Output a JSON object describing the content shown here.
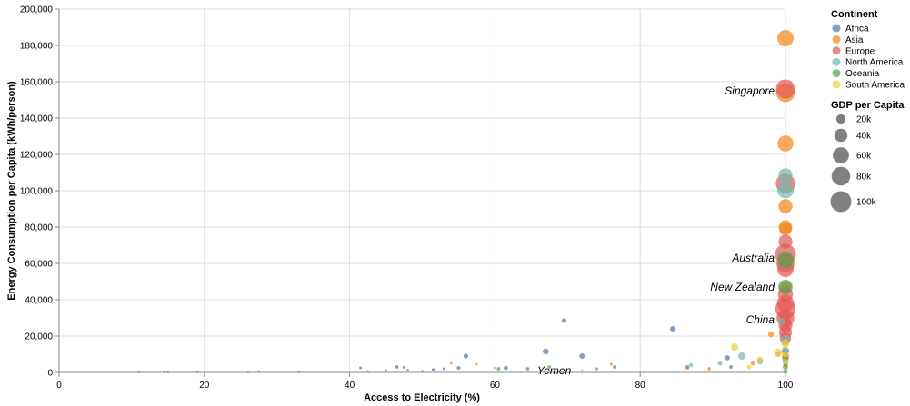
{
  "chart_data": {
    "type": "scatter",
    "xlabel": "Access to Electricity (%)",
    "ylabel": "Energy Consumption per Capita (kWh/person)",
    "xlim": [
      0,
      100
    ],
    "ylim": [
      0,
      200000
    ],
    "x_ticks": [
      0,
      20,
      40,
      60,
      80,
      100
    ],
    "x_tick_labels": [
      "0",
      "20",
      "40",
      "60",
      "80",
      "100"
    ],
    "y_ticks": [
      0,
      20000,
      40000,
      60000,
      80000,
      100000,
      120000,
      140000,
      160000,
      180000,
      200000
    ],
    "y_tick_labels": [
      "0",
      "20,000",
      "40,000",
      "60,000",
      "80,000",
      "100,000",
      "120,000",
      "140,000",
      "160,000",
      "180,000",
      "200,000"
    ],
    "grid": true,
    "legend_position": "right",
    "color_legend": {
      "title": "Continent",
      "items": [
        {
          "label": "Africa",
          "color": "#4c78a8"
        },
        {
          "label": "Asia",
          "color": "#f58518"
        },
        {
          "label": "Europe",
          "color": "#e45756"
        },
        {
          "label": "North America",
          "color": "#72b7b2"
        },
        {
          "label": "Oceania",
          "color": "#54a24b"
        },
        {
          "label": "South America",
          "color": "#eeca3b"
        }
      ]
    },
    "size_legend": {
      "title": "GDP per Capita",
      "items": [
        {
          "label": "20k",
          "value": 20000
        },
        {
          "label": "40k",
          "value": 40000
        },
        {
          "label": "60k",
          "value": 60000
        },
        {
          "label": "80k",
          "value": 80000
        },
        {
          "label": "100k",
          "value": 100000
        }
      ]
    },
    "annotations": [
      {
        "label": "Singapore",
        "x": 100,
        "y": 155000
      },
      {
        "label": "Australia",
        "x": 100,
        "y": 63000
      },
      {
        "label": "New Zealand",
        "x": 100,
        "y": 47000
      },
      {
        "label": "China",
        "x": 100,
        "y": 29000
      },
      {
        "label": "Yemen",
        "x": 72,
        "y": 1000
      }
    ],
    "series": [
      {
        "name": "Africa",
        "points": [
          {
            "x": 11,
            "y": 200,
            "gdp": 1000
          },
          {
            "x": 14.5,
            "y": 300,
            "gdp": 800
          },
          {
            "x": 15,
            "y": 250,
            "gdp": 900
          },
          {
            "x": 19,
            "y": 400,
            "gdp": 1200
          },
          {
            "x": 26,
            "y": 300,
            "gdp": 1100
          },
          {
            "x": 27.5,
            "y": 500,
            "gdp": 1300
          },
          {
            "x": 33,
            "y": 400,
            "gdp": 900
          },
          {
            "x": 41.5,
            "y": 2500,
            "gdp": 1800
          },
          {
            "x": 42.5,
            "y": 600,
            "gdp": 1200
          },
          {
            "x": 45,
            "y": 1000,
            "gdp": 1400
          },
          {
            "x": 46.5,
            "y": 3000,
            "gdp": 2500
          },
          {
            "x": 47.5,
            "y": 2800,
            "gdp": 2000
          },
          {
            "x": 48,
            "y": 1200,
            "gdp": 1500
          },
          {
            "x": 50,
            "y": 800,
            "gdp": 1100
          },
          {
            "x": 51.5,
            "y": 1500,
            "gdp": 2000
          },
          {
            "x": 53,
            "y": 2000,
            "gdp": 1600
          },
          {
            "x": 55,
            "y": 2500,
            "gdp": 3000
          },
          {
            "x": 56,
            "y": 9000,
            "gdp": 5000
          },
          {
            "x": 61.5,
            "y": 2500,
            "gdp": 4000
          },
          {
            "x": 64.5,
            "y": 2000,
            "gdp": 2500
          },
          {
            "x": 67,
            "y": 11500,
            "gdp": 8000
          },
          {
            "x": 69.5,
            "y": 28500,
            "gdp": 5000
          },
          {
            "x": 72,
            "y": 9000,
            "gdp": 7000
          },
          {
            "x": 76.5,
            "y": 3000,
            "gdp": 3000
          },
          {
            "x": 84.5,
            "y": 24000,
            "gdp": 7000
          },
          {
            "x": 86.5,
            "y": 3000,
            "gdp": 3000
          },
          {
            "x": 92,
            "y": 8000,
            "gdp": 6000
          },
          {
            "x": 92.5,
            "y": 3000,
            "gdp": 3000
          },
          {
            "x": 100,
            "y": 7000,
            "gdp": 6000
          },
          {
            "x": 100,
            "y": 11500,
            "gdp": 9000
          },
          {
            "x": 100,
            "y": 4500,
            "gdp": 4000
          }
        ]
      },
      {
        "name": "Asia",
        "points": [
          {
            "x": 54,
            "y": 5000,
            "gdp": 1500
          },
          {
            "x": 57.5,
            "y": 4500,
            "gdp": 1200
          },
          {
            "x": 60,
            "y": 2500,
            "gdp": 1500
          },
          {
            "x": 72,
            "y": 1000,
            "gdp": 1000
          },
          {
            "x": 76,
            "y": 4500,
            "gdp": 2000
          },
          {
            "x": 86.5,
            "y": 2500,
            "gdp": 3000
          },
          {
            "x": 89.5,
            "y": 2000,
            "gdp": 2500
          },
          {
            "x": 95.5,
            "y": 5000,
            "gdp": 4000
          },
          {
            "x": 98,
            "y": 21000,
            "gdp": 8000
          },
          {
            "x": 99,
            "y": 10000,
            "gdp": 6000
          },
          {
            "x": 100,
            "y": 184000,
            "gdp": 62000
          },
          {
            "x": 100,
            "y": 154000,
            "gdp": 82000
          },
          {
            "x": 100,
            "y": 126000,
            "gdp": 58000
          },
          {
            "x": 100,
            "y": 91500,
            "gdp": 45000
          },
          {
            "x": 100,
            "y": 80000,
            "gdp": 42000
          },
          {
            "x": 100,
            "y": 79000,
            "gdp": 38000
          },
          {
            "x": 100,
            "y": 47000,
            "gdp": 33000
          },
          {
            "x": 100,
            "y": 30000,
            "gdp": 32000
          },
          {
            "x": 100,
            "y": 25000,
            "gdp": 20000
          },
          {
            "x": 100,
            "y": 17000,
            "gdp": 15000
          },
          {
            "x": 100,
            "y": 9000,
            "gdp": 12000
          },
          {
            "x": 100,
            "y": 5000,
            "gdp": 6000
          }
        ]
      },
      {
        "name": "Europe",
        "points": [
          {
            "x": 100,
            "y": 156000,
            "gdp": 84000
          },
          {
            "x": 100,
            "y": 104000,
            "gdp": 86000
          },
          {
            "x": 100,
            "y": 72000,
            "gdp": 44000
          },
          {
            "x": 100,
            "y": 65000,
            "gdp": 100000
          },
          {
            "x": 100,
            "y": 60000,
            "gdp": 75000
          },
          {
            "x": 100,
            "y": 57000,
            "gdp": 62000
          },
          {
            "x": 100,
            "y": 43000,
            "gdp": 52000
          },
          {
            "x": 100,
            "y": 38000,
            "gdp": 68000
          },
          {
            "x": 100,
            "y": 35000,
            "gdp": 95000
          },
          {
            "x": 100,
            "y": 30000,
            "gdp": 72000
          },
          {
            "x": 100,
            "y": 26000,
            "gdp": 45000
          },
          {
            "x": 100,
            "y": 22000,
            "gdp": 38000
          },
          {
            "x": 100,
            "y": 19000,
            "gdp": 30000
          }
        ]
      },
      {
        "name": "North America",
        "points": [
          {
            "x": 87,
            "y": 4000,
            "gdp": 4000
          },
          {
            "x": 91,
            "y": 5000,
            "gdp": 5000
          },
          {
            "x": 94,
            "y": 9000,
            "gdp": 12000
          },
          {
            "x": 96.5,
            "y": 6000,
            "gdp": 8000
          },
          {
            "x": 99.5,
            "y": 28000,
            "gdp": 12000
          },
          {
            "x": 100,
            "y": 108500,
            "gdp": 45000
          },
          {
            "x": 100,
            "y": 100500,
            "gdp": 65000
          },
          {
            "x": 100,
            "y": 18000,
            "gdp": 20000
          },
          {
            "x": 100,
            "y": 12000,
            "gdp": 14000
          },
          {
            "x": 100,
            "y": 6500,
            "gdp": 9000
          }
        ]
      },
      {
        "name": "Oceania",
        "points": [
          {
            "x": 60.5,
            "y": 2000,
            "gdp": 3000
          },
          {
            "x": 67.5,
            "y": 3000,
            "gdp": 2500
          },
          {
            "x": 74,
            "y": 2000,
            "gdp": 2000
          },
          {
            "x": 100,
            "y": 62000,
            "gdp": 65000
          },
          {
            "x": 100,
            "y": 47000,
            "gdp": 48000
          },
          {
            "x": 100,
            "y": 8000,
            "gdp": 10000
          },
          {
            "x": 100,
            "y": 3000,
            "gdp": 7000
          },
          {
            "x": 100,
            "y": 500,
            "gdp": 4000
          }
        ]
      },
      {
        "name": "South America",
        "points": [
          {
            "x": 93,
            "y": 14000,
            "gdp": 12000
          },
          {
            "x": 96.5,
            "y": 7000,
            "gdp": 9000
          },
          {
            "x": 99,
            "y": 11000,
            "gdp": 14000
          },
          {
            "x": 100,
            "y": 16000,
            "gdp": 16000
          },
          {
            "x": 100,
            "y": 10000,
            "gdp": 10000
          },
          {
            "x": 100,
            "y": 6000,
            "gdp": 8000
          },
          {
            "x": 95,
            "y": 3000,
            "gdp": 5000
          }
        ]
      }
    ]
  }
}
